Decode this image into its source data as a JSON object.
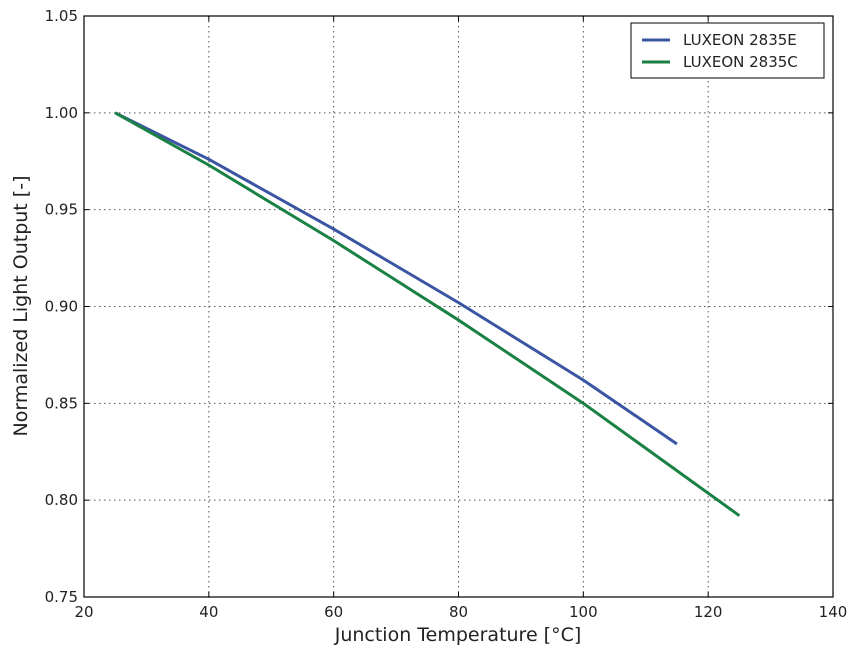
{
  "chart_data": {
    "type": "line",
    "title": "",
    "xlabel": "Junction Temperature [°C]",
    "ylabel": "Normalized Light Output [-]",
    "xlim": [
      20,
      140
    ],
    "ylim": [
      0.75,
      1.05
    ],
    "xticks": [
      20,
      40,
      60,
      80,
      100,
      120,
      140
    ],
    "yticks": [
      0.75,
      0.8,
      0.85,
      0.9,
      0.95,
      1.0,
      1.05
    ],
    "xtick_labels": [
      "20",
      "40",
      "60",
      "80",
      "100",
      "120",
      "140"
    ],
    "ytick_labels": [
      "0.75",
      "0.80",
      "0.85",
      "0.90",
      "0.95",
      "1.00",
      "1.05"
    ],
    "grid": true,
    "legend_position": "top-right",
    "series": [
      {
        "name": "LUXEON 2835E",
        "color": "#3a55a2",
        "x": [
          25,
          40,
          60,
          80,
          100,
          115
        ],
        "y": [
          1.0,
          0.976,
          0.94,
          0.902,
          0.862,
          0.829
        ]
      },
      {
        "name": "LUXEON 2835C",
        "color": "#1a8145",
        "x": [
          25,
          40,
          60,
          80,
          100,
          125
        ],
        "y": [
          1.0,
          0.973,
          0.934,
          0.893,
          0.85,
          0.792
        ]
      }
    ]
  }
}
